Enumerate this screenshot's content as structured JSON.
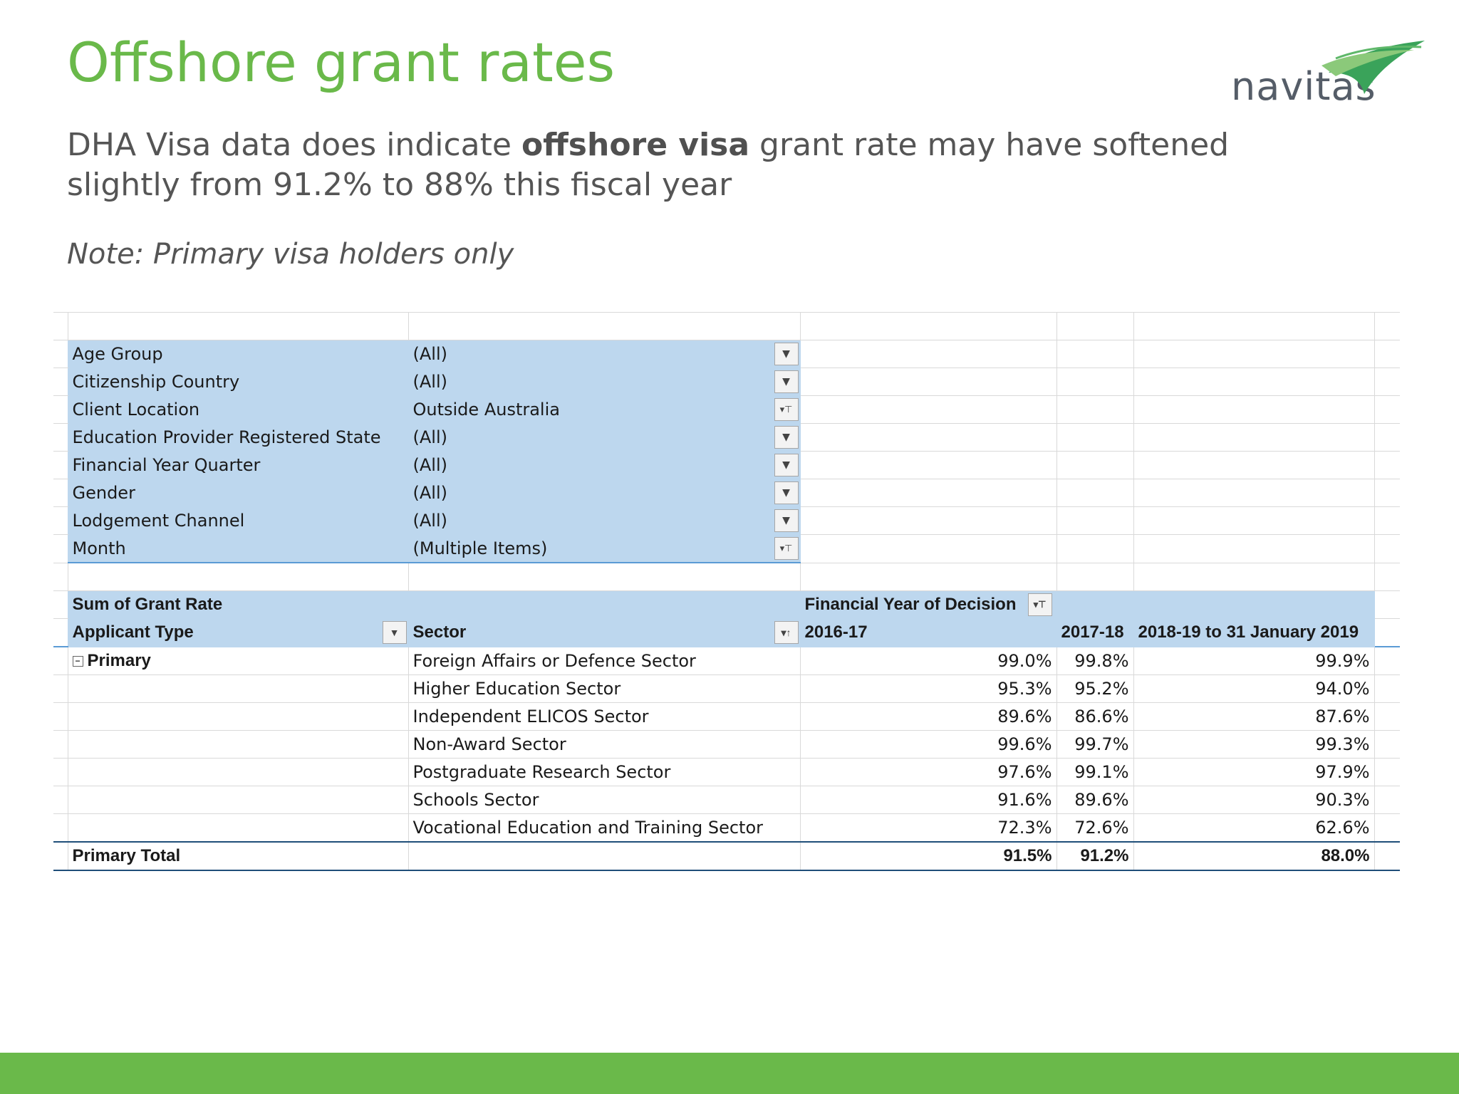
{
  "slide": {
    "title": "Offshore grant rates",
    "subtitle_pre": "DHA Visa data does indicate ",
    "subtitle_bold": "offshore visa",
    "subtitle_post": " grant rate may have softened slightly from 91.2% to 88% this fiscal year",
    "note": "Note: Primary visa holders only",
    "logo_text": "navitas",
    "accent_color": "#6ab94a"
  },
  "filters": [
    {
      "label": "Age Group",
      "value": "(All)",
      "icon": "chevron-down-icon"
    },
    {
      "label": "Citizenship Country",
      "value": "(All)",
      "icon": "chevron-down-icon"
    },
    {
      "label": "Client Location",
      "value": "Outside Australia",
      "icon": "filter-icon"
    },
    {
      "label": "Education Provider Registered State",
      "value": "(All)",
      "icon": "chevron-down-icon"
    },
    {
      "label": "Financial Year Quarter",
      "value": "(All)",
      "icon": "chevron-down-icon"
    },
    {
      "label": "Gender",
      "value": "(All)",
      "icon": "chevron-down-icon"
    },
    {
      "label": "Lodgement Channel",
      "value": "(All)",
      "icon": "chevron-down-icon"
    },
    {
      "label": "Month",
      "value": "(Multiple Items)",
      "icon": "filter-icon"
    }
  ],
  "pivot": {
    "sum_label": "Sum of Grant Rate",
    "col_group_label": "Financial Year of Decision",
    "applicant_type_label": "Applicant Type",
    "sector_label": "Sector",
    "years": [
      "2016-17",
      "2017-18",
      "2018-19 to 31 January 2019"
    ],
    "group": "Primary",
    "rows": [
      {
        "sector": "Foreign Affairs or Defence Sector",
        "values": [
          "99.0%",
          "99.8%",
          "99.9%"
        ]
      },
      {
        "sector": "Higher Education Sector",
        "values": [
          "95.3%",
          "95.2%",
          "94.0%"
        ]
      },
      {
        "sector": "Independent ELICOS Sector",
        "values": [
          "89.6%",
          "86.6%",
          "87.6%"
        ]
      },
      {
        "sector": "Non-Award Sector",
        "values": [
          "99.6%",
          "99.7%",
          "99.3%"
        ]
      },
      {
        "sector": "Postgraduate Research Sector",
        "values": [
          "97.6%",
          "99.1%",
          "97.9%"
        ]
      },
      {
        "sector": "Schools Sector",
        "values": [
          "91.6%",
          "89.6%",
          "90.3%"
        ]
      },
      {
        "sector": "Vocational Education and Training Sector",
        "values": [
          "72.3%",
          "72.6%",
          "62.6%"
        ]
      }
    ],
    "total_label": "Primary Total",
    "total_values": [
      "91.5%",
      "91.2%",
      "88.0%"
    ]
  }
}
